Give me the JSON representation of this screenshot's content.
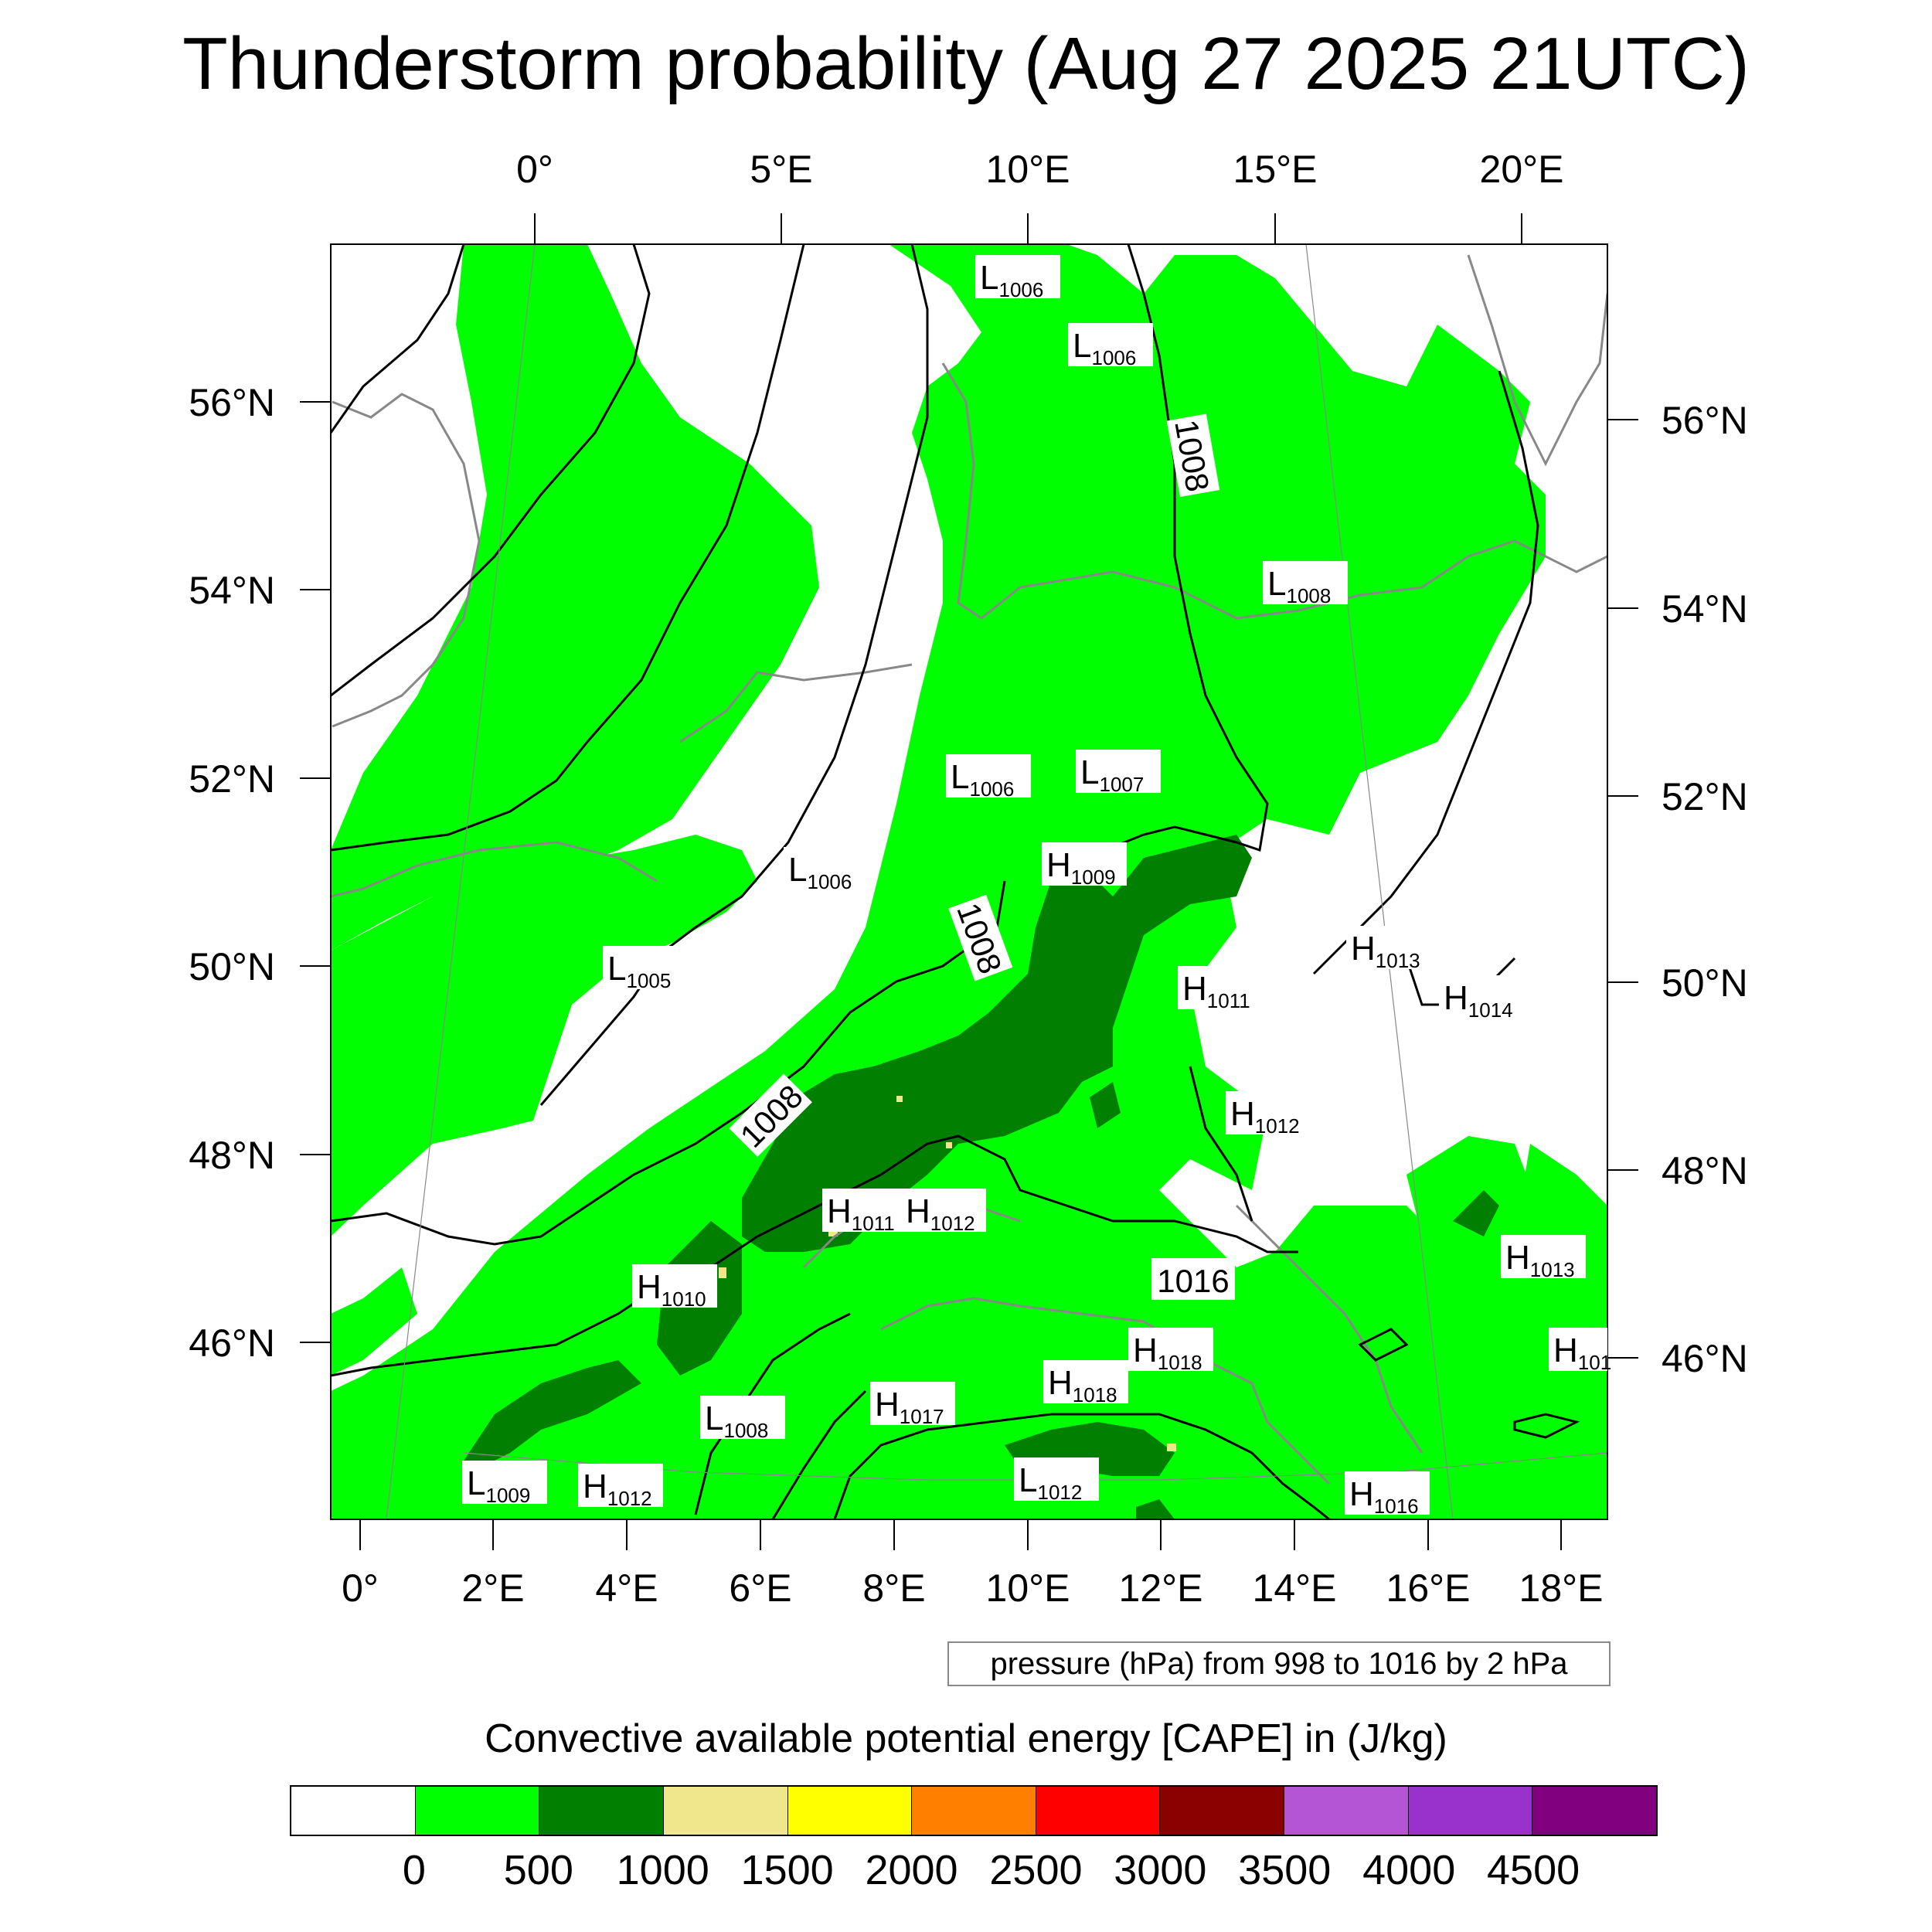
{
  "title": "Thunderstorm probability (Aug 27 2025 21UTC)",
  "map": {
    "top_lon_labels": [
      "0°",
      "5°E",
      "10°E",
      "15°E",
      "20°E"
    ],
    "bottom_lon_labels": [
      "0°",
      "2°E",
      "4°E",
      "6°E",
      "8°E",
      "10°E",
      "12°E",
      "14°E",
      "16°E",
      "18°E"
    ],
    "left_lat_labels": [
      "56°N",
      "54°N",
      "52°N",
      "50°N",
      "48°N",
      "46°N"
    ],
    "right_lat_labels": [
      "56°N",
      "54°N",
      "52°N",
      "50°N",
      "48°N",
      "46°N"
    ],
    "colors": {
      "cape_0_500": "#00ff00",
      "cape_500_1000": "#007f00",
      "cape_1000_1500": "#f0e68c",
      "isobar": "#000000",
      "coastline": "#888888"
    },
    "pressure_centers": [
      {
        "type": "L",
        "value": "1006"
      },
      {
        "type": "L",
        "value": "1006"
      },
      {
        "type": "L",
        "value": "1008"
      },
      {
        "type": "L",
        "value": "1006"
      },
      {
        "type": "L",
        "value": "1007"
      },
      {
        "type": "H",
        "value": "1009"
      },
      {
        "type": "L",
        "value": "1006"
      },
      {
        "type": "L",
        "value": "1005"
      },
      {
        "type": "H",
        "value": "1013"
      },
      {
        "type": "H",
        "value": "1014"
      },
      {
        "type": "H",
        "value": "1011"
      },
      {
        "type": "H",
        "value": "1012"
      },
      {
        "type": "H",
        "value": "1011"
      },
      {
        "type": "H",
        "value": "1012"
      },
      {
        "type": "H",
        "value": "1013"
      },
      {
        "type": "H",
        "value": "1010"
      },
      {
        "type": "H",
        "value": "1018"
      },
      {
        "type": "H",
        "value": "101"
      },
      {
        "type": "H",
        "value": "1018"
      },
      {
        "type": "H",
        "value": "1017"
      },
      {
        "type": "L",
        "value": "1008"
      },
      {
        "type": "L",
        "value": "1009"
      },
      {
        "type": "H",
        "value": "1012"
      },
      {
        "type": "L",
        "value": "1012"
      },
      {
        "type": "H",
        "value": "1016"
      }
    ],
    "isobar_labels": [
      "1008",
      "1008",
      "1008",
      "1016"
    ]
  },
  "pressure_note": "pressure (hPa) from 998 to 1016 by 2 hPa",
  "colorbar": {
    "title": "Convective available potential energy [CAPE] in (J/kg)",
    "colors": [
      "#ffffff",
      "#00ff00",
      "#007f00",
      "#f0e68c",
      "#ffff00",
      "#ff8000",
      "#ff0000",
      "#8b0000",
      "#b455d6",
      "#9932cc",
      "#800080"
    ],
    "labels": [
      "0",
      "500",
      "1000",
      "1500",
      "2000",
      "2500",
      "3000",
      "3500",
      "4000",
      "4500"
    ]
  }
}
